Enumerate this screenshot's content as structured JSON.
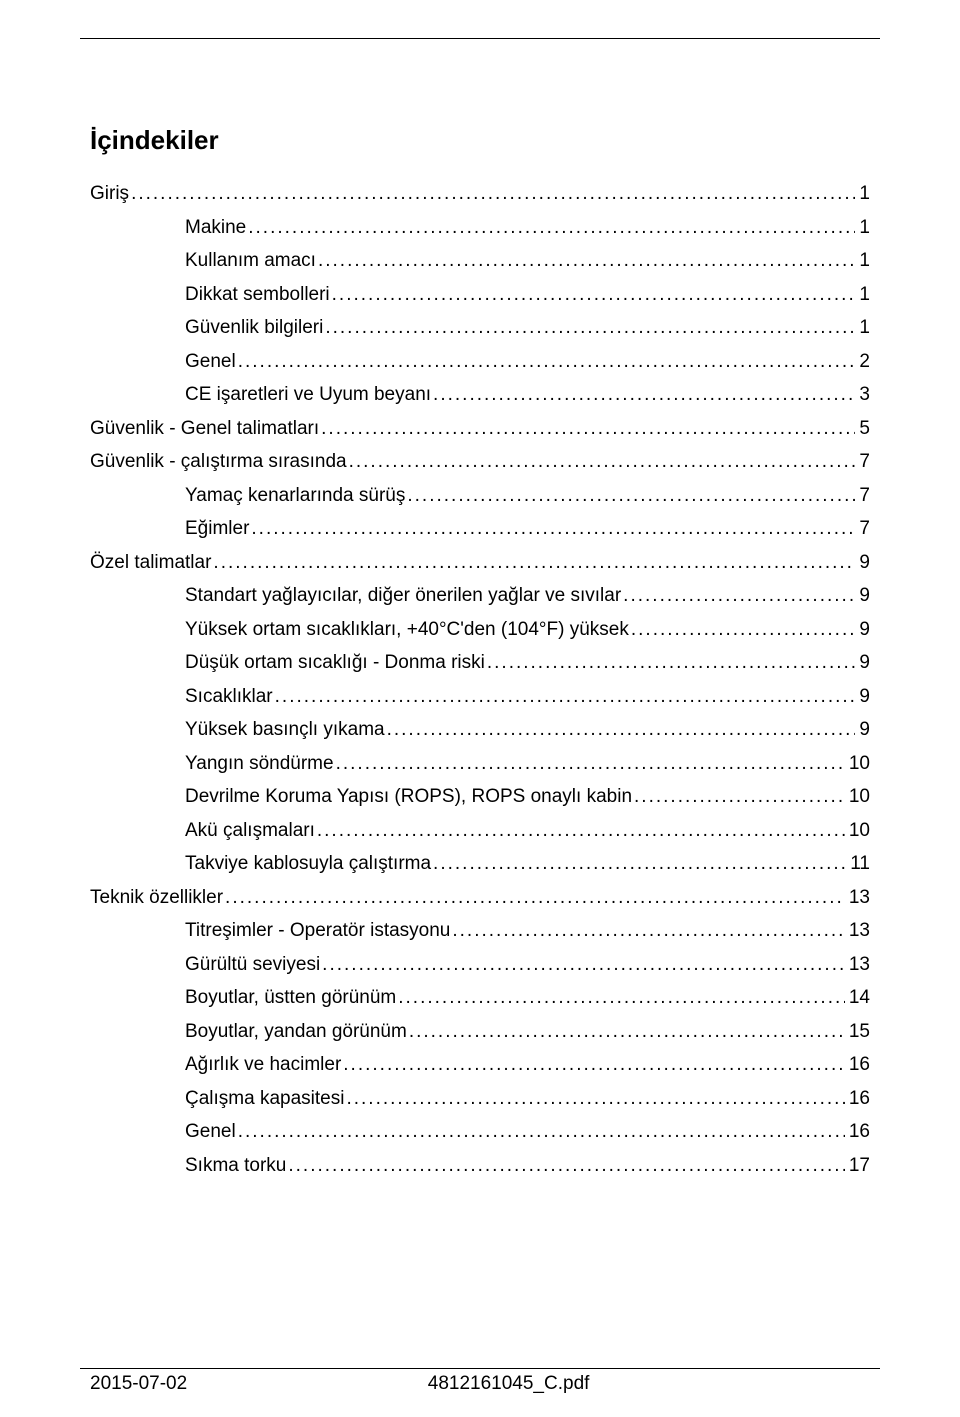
{
  "title": "İçindekiler",
  "entries": [
    {
      "label": "Giriş",
      "page": "1",
      "indent": 0
    },
    {
      "label": "Makine",
      "page": "1",
      "indent": 1
    },
    {
      "label": "Kullanım amacı",
      "page": "1",
      "indent": 1
    },
    {
      "label": "Dikkat sembolleri",
      "page": "1",
      "indent": 1
    },
    {
      "label": "Güvenlik bilgileri",
      "page": "1",
      "indent": 1
    },
    {
      "label": "Genel",
      "page": "2",
      "indent": 1
    },
    {
      "label": "CE işaretleri ve Uyum beyanı",
      "page": "3",
      "indent": 1
    },
    {
      "label": "Güvenlik - Genel talimatları",
      "page": "5",
      "indent": 0
    },
    {
      "label": "Güvenlik - çalıştırma sırasında",
      "page": "7",
      "indent": 0
    },
    {
      "label": "Yamaç kenarlarında sürüş",
      "page": "7",
      "indent": 1
    },
    {
      "label": "Eğimler",
      "page": "7",
      "indent": 1
    },
    {
      "label": "Özel talimatlar",
      "page": "9",
      "indent": 0
    },
    {
      "label": "Standart yağlayıcılar, diğer önerilen yağlar ve sıvılar",
      "page": "9",
      "indent": 1
    },
    {
      "label": "Yüksek ortam sıcaklıkları, +40°C'den (104°F) yüksek",
      "page": "9",
      "indent": 1
    },
    {
      "label": "Düşük ortam sıcaklığı - Donma riski",
      "page": "9",
      "indent": 1
    },
    {
      "label": "Sıcaklıklar",
      "page": "9",
      "indent": 1
    },
    {
      "label": "Yüksek basınçlı yıkama",
      "page": "9",
      "indent": 1
    },
    {
      "label": "Yangın söndürme",
      "page": "10",
      "indent": 1
    },
    {
      "label": "Devrilme Koruma Yapısı (ROPS), ROPS onaylı kabin",
      "page": "10",
      "indent": 1
    },
    {
      "label": "Akü çalışmaları",
      "page": "10",
      "indent": 1
    },
    {
      "label": "Takviye kablosuyla çalıştırma",
      "page": "11",
      "indent": 1
    },
    {
      "label": "Teknik özellikler",
      "page": "13",
      "indent": 0
    },
    {
      "label": "Titreşimler - Operatör istasyonu",
      "page": "13",
      "indent": 1
    },
    {
      "label": "Gürültü seviyesi",
      "page": "13",
      "indent": 1
    },
    {
      "label": "Boyutlar, üstten görünüm",
      "page": "14",
      "indent": 1
    },
    {
      "label": "Boyutlar, yandan görünüm",
      "page": "15",
      "indent": 1
    },
    {
      "label": "Ağırlık ve hacimler",
      "page": "16",
      "indent": 1
    },
    {
      "label": "Çalışma kapasitesi",
      "page": "16",
      "indent": 1
    },
    {
      "label": "Genel",
      "page": "16",
      "indent": 1
    },
    {
      "label": "Sıkma torku",
      "page": "17",
      "indent": 1
    }
  ],
  "footer": {
    "date": "2015-07-02",
    "filename": "4812161045_C.pdf"
  },
  "colors": {
    "text": "#000000",
    "background": "#ffffff",
    "rule": "#000000"
  },
  "typography": {
    "title_fontsize": 26,
    "body_fontsize": 19,
    "font_family": "Arial"
  }
}
